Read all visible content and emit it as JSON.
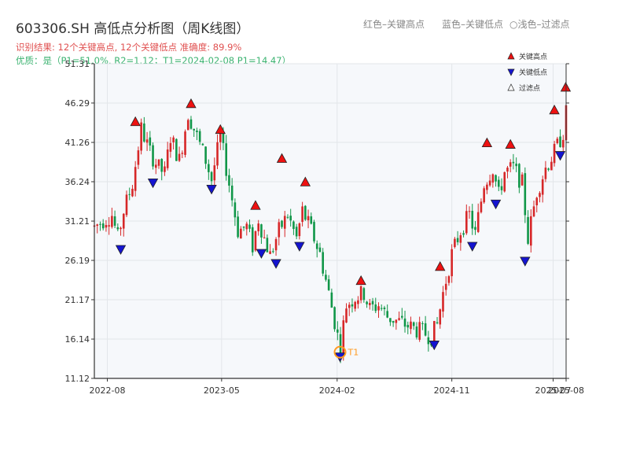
{
  "header": {
    "title": "603306.SH 高低点分析图（周K线图）",
    "legend_red": "红色–关键高点",
    "legend_blue": "蓝色–关键低点",
    "legend_filtered_symbol": "○",
    "legend_filtered": "浅色–过滤点",
    "result_line": "识别结果: 12个关键高点, 12个关键低点   准确度: 89.9%",
    "quality_line": "优质：是（P1=51.0%, R2=1.12；T1=2024-02-08 P1=14.47）"
  },
  "colors": {
    "up": "#d62728",
    "down": "#109648",
    "high_marker": "#ee1111",
    "low_marker": "#1414d0",
    "filtered_marker": "#ffffff",
    "t1": "#ff9a1f",
    "plot_bg": "#f6f8fb",
    "grid": "#e3e6ea"
  },
  "chart_data": {
    "type": "candlestick",
    "title": "603306.SH 高低点分析图（周K线图）",
    "ylim": [
      11.12,
      51.31
    ],
    "yticks": [
      11.12,
      16.14,
      21.17,
      26.19,
      31.21,
      36.24,
      41.26,
      46.29,
      51.31
    ],
    "ytick_labels": [
      "11.12",
      "16.14",
      "21.17",
      "26.19",
      "31.21",
      "36.24",
      "41.26",
      "46.29",
      "51.31"
    ],
    "xlim": [
      "2022-07-01",
      "2025-08-01"
    ],
    "xticks": [
      "2022-08-01",
      "2023-05-01",
      "2024-02-01",
      "2024-11-01",
      "2025-07-01",
      "2025-08-01"
    ],
    "xtick_labels": [
      "2022-08",
      "2023-05",
      "2024-02",
      "2024-11",
      "2025-07",
      "2025-08"
    ],
    "grid": true,
    "legend_position": "top-right",
    "legend": [
      {
        "label": "关键高点",
        "marker": "triangle-up",
        "color": "#ee1111"
      },
      {
        "label": "关键低点",
        "marker": "triangle-down",
        "color": "#1414d0"
      },
      {
        "label": "过滤点",
        "marker": "triangle-up",
        "color": "#ffffff"
      }
    ],
    "price_path": [
      [
        "2022-07-01",
        30.5
      ],
      [
        "2022-07-22",
        31.3
      ],
      [
        "2022-08-12",
        32.0
      ],
      [
        "2022-08-26",
        29.0
      ],
      [
        "2022-09-09",
        32.5
      ],
      [
        "2022-09-30",
        36.0
      ],
      [
        "2022-10-21",
        43.0
      ],
      [
        "2022-11-11",
        40.0
      ],
      [
        "2022-12-02",
        38.0
      ],
      [
        "2022-12-16",
        37.3
      ],
      [
        "2022-12-30",
        42.0
      ],
      [
        "2023-01-20",
        39.0
      ],
      [
        "2023-02-10",
        45.0
      ],
      [
        "2023-03-03",
        42.0
      ],
      [
        "2023-03-24",
        39.0
      ],
      [
        "2023-04-07",
        36.5
      ],
      [
        "2023-04-28",
        42.0
      ],
      [
        "2023-05-19",
        36.0
      ],
      [
        "2023-06-09",
        30.0
      ],
      [
        "2023-06-30",
        30.5
      ],
      [
        "2023-07-14",
        28.0
      ],
      [
        "2023-07-28",
        31.5
      ],
      [
        "2023-08-11",
        29.0
      ],
      [
        "2023-08-25",
        26.8
      ],
      [
        "2023-09-15",
        30.0
      ],
      [
        "2023-10-06",
        32.0
      ],
      [
        "2023-10-27",
        29.0
      ],
      [
        "2023-11-10",
        32.5
      ],
      [
        "2023-12-01",
        30.0
      ],
      [
        "2023-12-22",
        27.0
      ],
      [
        "2024-01-12",
        22.0
      ],
      [
        "2024-02-08",
        15.0
      ],
      [
        "2024-02-23",
        20.5
      ],
      [
        "2024-03-15",
        21.5
      ],
      [
        "2024-04-05",
        22.0
      ],
      [
        "2024-04-19",
        20.0
      ],
      [
        "2024-05-10",
        20.5
      ],
      [
        "2024-05-31",
        19.0
      ],
      [
        "2024-06-21",
        18.5
      ],
      [
        "2024-07-12",
        18.0
      ],
      [
        "2024-08-02",
        17.5
      ],
      [
        "2024-08-23",
        17.0
      ],
      [
        "2024-09-13",
        16.5
      ],
      [
        "2024-09-27",
        18.0
      ],
      [
        "2024-10-11",
        22.0
      ],
      [
        "2024-11-01",
        27.0
      ],
      [
        "2024-11-22",
        30.0
      ],
      [
        "2024-12-13",
        32.0
      ],
      [
        "2024-12-27",
        29.5
      ],
      [
        "2025-01-17",
        36.0
      ],
      [
        "2025-02-07",
        38.0
      ],
      [
        "2025-02-21",
        34.5
      ],
      [
        "2025-03-07",
        37.5
      ],
      [
        "2025-03-28",
        38.0
      ],
      [
        "2025-04-18",
        36.0
      ],
      [
        "2025-05-02",
        29.0
      ],
      [
        "2025-05-23",
        35.0
      ],
      [
        "2025-06-13",
        38.0
      ],
      [
        "2025-07-04",
        40.0
      ],
      [
        "2025-07-25",
        42.5
      ],
      [
        "2025-08-01",
        45.0
      ]
    ],
    "key_highs": [
      {
        "date": "2022-10-07",
        "price": 43.3
      },
      {
        "date": "2023-02-17",
        "price": 45.6
      },
      {
        "date": "2023-04-28",
        "price": 42.3
      },
      {
        "date": "2023-07-21",
        "price": 32.6
      },
      {
        "date": "2023-09-22",
        "price": 38.6
      },
      {
        "date": "2023-11-17",
        "price": 35.6
      },
      {
        "date": "2024-03-29",
        "price": 23.0
      },
      {
        "date": "2024-10-04",
        "price": 24.8
      },
      {
        "date": "2025-01-24",
        "price": 40.6
      },
      {
        "date": "2025-03-21",
        "price": 40.4
      },
      {
        "date": "2025-07-04",
        "price": 44.8
      },
      {
        "date": "2025-07-31",
        "price": 47.7
      }
    ],
    "key_lows": [
      {
        "date": "2022-09-02",
        "price": 28.2
      },
      {
        "date": "2022-11-18",
        "price": 36.7
      },
      {
        "date": "2023-04-07",
        "price": 35.9
      },
      {
        "date": "2023-08-04",
        "price": 27.7
      },
      {
        "date": "2023-09-08",
        "price": 26.4
      },
      {
        "date": "2023-11-03",
        "price": 28.6
      },
      {
        "date": "2024-02-08",
        "price": 14.47
      },
      {
        "date": "2024-09-20",
        "price": 16.0
      },
      {
        "date": "2024-12-20",
        "price": 28.6
      },
      {
        "date": "2025-02-14",
        "price": 34.0
      },
      {
        "date": "2025-04-25",
        "price": 26.7
      },
      {
        "date": "2025-07-18",
        "price": 40.2
      }
    ],
    "annotation": {
      "label": "T1",
      "date": "2024-02-08",
      "price": 14.47
    }
  }
}
